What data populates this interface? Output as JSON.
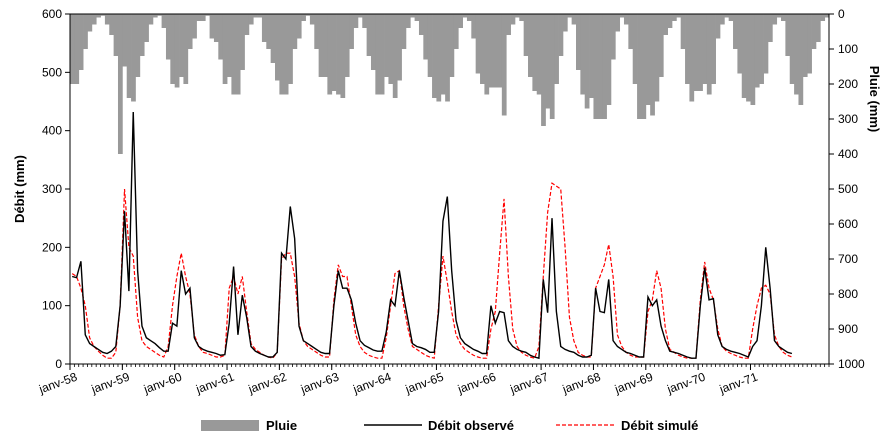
{
  "chart_data": {
    "type": "bar+line",
    "title": "",
    "ylabel_left": "Débit (mm)",
    "ylabel_right": "Pluie (mm)",
    "ylim_left": [
      0,
      600
    ],
    "ylim_right": [
      0,
      1000
    ],
    "right_axis_inverted": true,
    "yticks_left": [
      "0",
      "100",
      "200",
      "300",
      "400",
      "500",
      "600"
    ],
    "yticks_right": [
      "0",
      "100",
      "200",
      "300",
      "400",
      "500",
      "600",
      "700",
      "800",
      "900",
      "1000"
    ],
    "x_tick_labels": [
      "janv-58",
      "janv-59",
      "janv-60",
      "janv-61",
      "janv-62",
      "janv-63",
      "janv-64",
      "janv-65",
      "janv-66",
      "janv-67",
      "janv-68",
      "janv-69",
      "janv-70",
      "janv-71"
    ],
    "x_start": "1958-01",
    "x_end": "1971-07",
    "legend_position": "bottom",
    "grid": false,
    "series": [
      {
        "name": "Pluie",
        "kind": "bar",
        "axis": "right",
        "color": "#999999",
        "values": [
          200,
          200,
          160,
          100,
          50,
          30,
          10,
          5,
          30,
          60,
          120,
          190,
          150,
          240,
          250,
          180,
          120,
          80,
          30,
          10,
          5,
          40,
          130,
          200,
          210,
          180,
          200,
          100,
          70,
          20,
          20,
          5,
          70,
          80,
          130,
          200,
          180,
          230,
          230,
          160,
          60,
          30,
          10,
          10,
          80,
          100,
          140,
          190,
          230,
          230,
          200,
          100,
          70,
          20,
          5,
          30,
          100,
          180,
          180,
          230,
          220,
          230,
          240,
          180,
          100,
          40,
          10,
          40,
          120,
          160,
          230,
          230,
          180,
          200,
          240,
          190,
          100,
          40,
          10,
          20,
          60,
          130,
          180,
          240,
          250,
          230,
          250,
          180,
          100,
          40,
          10,
          20,
          70,
          170,
          200,
          230,
          210,
          210,
          210,
          200,
          60,
          30,
          10,
          20,
          120,
          180,
          220,
          230,
          270,
          270,
          300,
          200,
          120,
          50,
          10,
          30,
          160,
          230,
          270,
          240,
          300,
          300,
          300,
          260,
          130,
          50,
          10,
          30,
          100,
          200,
          300,
          300,
          260,
          290,
          250,
          180,
          60,
          40,
          20,
          10,
          100,
          200,
          250,
          220,
          220,
          200,
          230,
          200,
          70,
          30,
          10,
          20,
          100,
          170,
          240,
          250,
          260,
          210,
          200,
          170,
          80,
          30,
          10,
          20,
          120,
          200,
          230,
          260,
          180,
          170,
          100,
          80,
          20,
          10
        ],
        "feature_points": [
          {
            "x": "1958-12",
            "value": 400
          },
          {
            "x": "1966-04",
            "value": 290
          },
          {
            "x": "1967-01",
            "value": 320
          }
        ]
      },
      {
        "name": "Débit observé",
        "kind": "line",
        "axis": "left",
        "color": "#000000",
        "values": [
          150,
          148,
          176,
          50,
          35,
          30,
          25,
          20,
          18,
          22,
          30,
          100,
          262,
          125,
          432,
          160,
          65,
          45,
          40,
          35,
          28,
          22,
          22,
          70,
          65,
          160,
          120,
          130,
          45,
          30,
          25,
          22,
          20,
          18,
          15,
          16,
          70,
          167,
          50,
          118,
          80,
          30,
          22,
          18,
          15,
          12,
          12,
          20,
          190,
          180,
          270,
          215,
          65,
          40,
          35,
          30,
          25,
          20,
          18,
          18,
          100,
          160,
          130,
          130,
          110,
          70,
          40,
          32,
          28,
          24,
          22,
          22,
          55,
          110,
          100,
          160,
          115,
          75,
          35,
          30,
          28,
          25,
          20,
          20,
          90,
          245,
          287,
          160,
          75,
          45,
          35,
          30,
          25,
          22,
          18,
          18,
          100,
          70,
          90,
          88,
          40,
          30,
          25,
          22,
          20,
          15,
          12,
          10,
          145,
          88,
          250,
          90,
          30,
          25,
          22,
          20,
          15,
          12,
          12,
          15,
          130,
          90,
          88,
          145,
          40,
          30,
          25,
          20,
          18,
          15,
          12,
          12,
          115,
          100,
          110,
          65,
          40,
          22,
          20,
          18,
          15,
          12,
          10,
          10,
          100,
          165,
          110,
          112,
          50,
          30,
          25,
          22,
          20,
          18,
          15,
          12,
          30,
          40,
          100,
          200,
          130,
          40,
          30,
          25,
          20,
          18
        ]
      },
      {
        "name": "Débit simulé",
        "kind": "line",
        "axis": "left",
        "color": "#ff0000",
        "values": [
          155,
          150,
          130,
          100,
          45,
          30,
          22,
          15,
          10,
          10,
          20,
          100,
          300,
          200,
          185,
          80,
          40,
          30,
          25,
          20,
          15,
          12,
          30,
          100,
          150,
          190,
          150,
          120,
          50,
          30,
          20,
          18,
          15,
          12,
          12,
          15,
          130,
          150,
          120,
          150,
          90,
          35,
          25,
          20,
          15,
          12,
          10,
          20,
          180,
          190,
          190,
          150,
          70,
          40,
          30,
          25,
          20,
          15,
          12,
          12,
          110,
          170,
          150,
          150,
          100,
          50,
          30,
          20,
          15,
          12,
          10,
          10,
          45,
          100,
          155,
          160,
          100,
          60,
          30,
          25,
          20,
          15,
          12,
          10,
          100,
          185,
          140,
          90,
          50,
          35,
          25,
          20,
          15,
          12,
          10,
          10,
          60,
          90,
          190,
          283,
          150,
          60,
          30,
          20,
          15,
          12,
          10,
          30,
          150,
          260,
          310,
          305,
          300,
          200,
          80,
          40,
          20,
          15,
          12,
          12,
          130,
          150,
          170,
          205,
          150,
          50,
          30,
          20,
          15,
          12,
          12,
          12,
          90,
          110,
          160,
          130,
          60,
          25,
          20,
          15,
          12,
          10,
          10,
          10,
          110,
          175,
          130,
          110,
          60,
          30,
          22,
          18,
          15,
          12,
          10,
          10,
          60,
          100,
          130,
          135,
          120,
          50,
          30,
          20,
          15,
          12
        ]
      }
    ]
  }
}
